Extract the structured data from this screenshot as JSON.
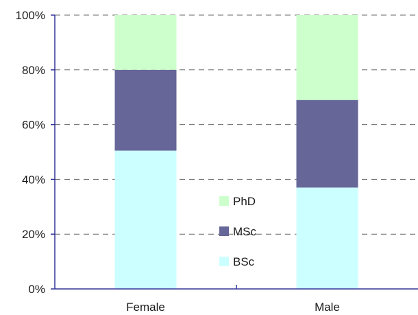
{
  "chart_data": {
    "type": "bar",
    "stacked": true,
    "percent": true,
    "title": "",
    "xlabel": "",
    "ylabel": "",
    "categories": [
      "Female",
      "Male"
    ],
    "series": [
      {
        "name": "BSc",
        "values": [
          50.5,
          37.0
        ],
        "color": "#ccffff"
      },
      {
        "name": "MSc",
        "values": [
          29.5,
          32.0
        ],
        "color": "#666699"
      },
      {
        "name": "PhD",
        "values": [
          20.0,
          31.0
        ],
        "color": "#ccffcc"
      }
    ],
    "ylim": [
      0,
      100
    ],
    "yticks": [
      0,
      20,
      40,
      60,
      80,
      100
    ],
    "ytick_labels": [
      "0%",
      "20%",
      "40%",
      "60%",
      "80%",
      "100%"
    ],
    "grid": "horizontal dashed",
    "legend": {
      "position": "center",
      "order": [
        "PhD",
        "MSc",
        "BSc"
      ]
    },
    "colors": {
      "axis": "#333399",
      "grid": "#666666",
      "text": "#1a1a1a"
    }
  }
}
